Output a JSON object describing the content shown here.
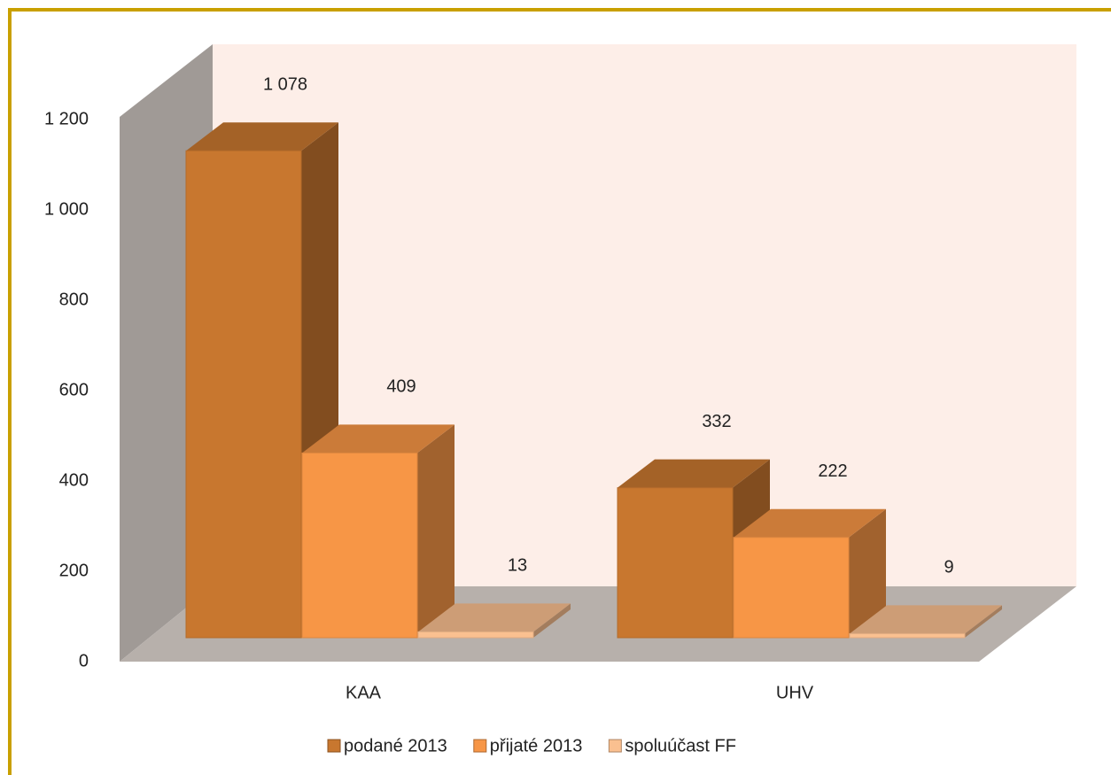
{
  "chart_data": {
    "type": "bar3d",
    "categories": [
      "KAA",
      "UHV"
    ],
    "series": [
      {
        "name": "podané 2013",
        "color": "#c8772f",
        "values": [
          1078,
          332
        ],
        "value_labels": [
          "1 078",
          "332"
        ]
      },
      {
        "name": "přijaté 2013",
        "color": "#f79646",
        "values": [
          409,
          222
        ]
      },
      {
        "name": "spoluúčast FF",
        "color": "#fac090",
        "values": [
          13,
          9
        ]
      }
    ],
    "ylim": [
      0,
      1200
    ],
    "yticks": [
      0,
      200,
      400,
      600,
      800,
      {
        "value": 1000,
        "label": "1 000"
      },
      {
        "value": 1200,
        "label": "1 200"
      }
    ],
    "legend": "bottom"
  }
}
